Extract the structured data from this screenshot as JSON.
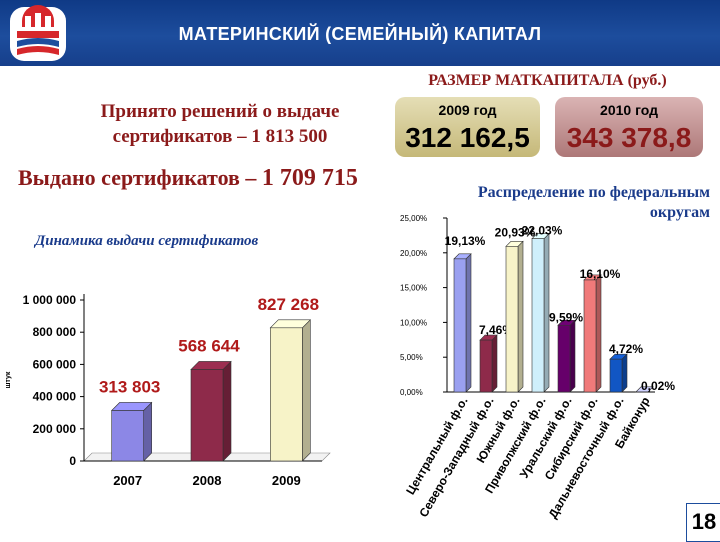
{
  "header": {
    "title": "МАТЕРИНСКИЙ (СЕМЕЙНЫЙ) КАПИТАЛ",
    "accent": "#1d4d9d"
  },
  "logo": {
    "icon": "pfr-logo-icon",
    "colors": [
      "#d6272b",
      "#ffffff",
      "#1d4d9d"
    ]
  },
  "decisions": {
    "line1": "Принято решений о выдаче",
    "line2": "сертификатов – 1 813 500"
  },
  "issued": {
    "label": "Выдано сертификатов –",
    "value": "1 709 715"
  },
  "capital_size": {
    "title": "РАЗМЕР МАТКАПИТАЛА (руб.)",
    "boxes": [
      {
        "year": "2009 год",
        "amount": "312 162,5"
      },
      {
        "year": "2010 год",
        "amount": "343 378,8"
      }
    ]
  },
  "page_number": "18",
  "chart_data": [
    {
      "type": "bar",
      "title": "Динамика выдачи сертификатов",
      "ylabel": "штук",
      "xlabel": "",
      "categories": [
        "2007",
        "2008",
        "2009"
      ],
      "values": [
        313803,
        568644,
        827268
      ],
      "value_labels": [
        "313 803",
        "568 644",
        "827 268"
      ],
      "bar_colors": [
        "#8c87e6",
        "#8e2a4a",
        "#f7f3c8"
      ],
      "label_color": "#b01a1a",
      "ylim": [
        0,
        1000000
      ],
      "yticks": [
        0,
        200000,
        400000,
        600000,
        800000,
        1000000
      ],
      "ytick_labels": [
        "0",
        "200 000",
        "400 000",
        "600 000",
        "800 000",
        "1 000 000"
      ],
      "grid": false,
      "style": "3d"
    },
    {
      "type": "bar",
      "title": "Распределение по федеральным округам",
      "xlabel": "",
      "ylabel": "",
      "categories": [
        "Центральный ф.о.",
        "Северо-Западный ф.о.",
        "Южный ф.о.",
        "Приволжский ф.о.",
        "Уральский ф.о.",
        "Сибирский ф.о.",
        "Дальневосточный ф.о.",
        "Байконур"
      ],
      "values": [
        19.13,
        7.46,
        20.93,
        22.03,
        9.59,
        16.1,
        4.72,
        0.02
      ],
      "value_labels": [
        "19,13%",
        "7,46%",
        "20,93%",
        "22,03%",
        "9,59%",
        "16,10%",
        "4,72%",
        "0,02%"
      ],
      "bar_colors": [
        "#9aa0f0",
        "#8e2a4a",
        "#f7f3c8",
        "#cfeffb",
        "#66006a",
        "#f07a7a",
        "#1156c4",
        "#bdbff5"
      ],
      "ylim": [
        0,
        25
      ],
      "yticks": [
        0,
        5,
        10,
        15,
        20,
        25
      ],
      "ytick_labels": [
        "0,00%",
        "5,00%",
        "10,00%",
        "15,00%",
        "20,00%",
        "25,00%"
      ],
      "grid": false,
      "style": "3d"
    }
  ]
}
